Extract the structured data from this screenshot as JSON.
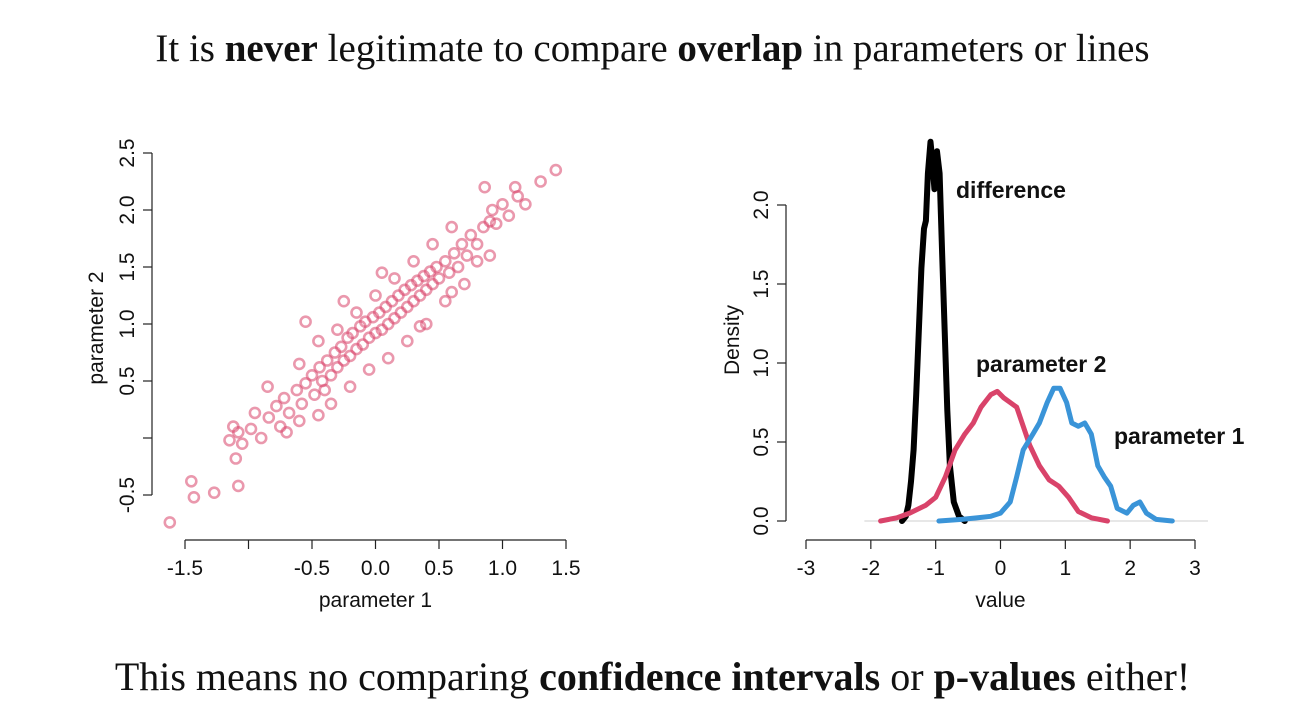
{
  "headline_top": {
    "p1": "It is ",
    "b1": "never",
    "p2": " legitimate to compare ",
    "b2": "overlap",
    "p3": " in parameters or lines"
  },
  "headline_bottom": {
    "p1": "This means no comparing ",
    "b1": "confidence intervals",
    "p2": " or ",
    "b2": "p-values",
    "p3": " either!"
  },
  "chart_data": [
    {
      "type": "scatter",
      "title": "",
      "xlabel": "parameter 1",
      "ylabel": "parameter 2",
      "xlim": [
        -1.5,
        1.5
      ],
      "ylim": [
        -0.5,
        2.5
      ],
      "x_ticks": [
        -1.5,
        -1.0,
        -0.5,
        0.0,
        0.5,
        1.0,
        1.5
      ],
      "x_tick_labels": [
        "-1.5",
        "",
        "-0.5",
        "0.0",
        "0.5",
        "1.0",
        "1.5"
      ],
      "y_ticks": [
        -0.5,
        0.0,
        0.5,
        1.0,
        1.5,
        2.0,
        2.5
      ],
      "y_tick_labels": [
        "-0.5",
        "",
        "0.5",
        "1.0",
        "1.5",
        "2.0",
        "2.5"
      ],
      "color": "#d9436a",
      "points": [
        [
          -1.62,
          -0.74
        ],
        [
          -1.43,
          -0.52
        ],
        [
          -1.45,
          -0.38
        ],
        [
          -1.27,
          -0.48
        ],
        [
          -1.08,
          -0.42
        ],
        [
          -1.1,
          -0.18
        ],
        [
          -1.15,
          -0.02
        ],
        [
          -1.08,
          0.05
        ],
        [
          -1.12,
          0.1
        ],
        [
          -1.05,
          -0.05
        ],
        [
          -0.98,
          0.08
        ],
        [
          -0.9,
          0.0
        ],
        [
          -0.95,
          0.22
        ],
        [
          -0.84,
          0.18
        ],
        [
          -0.78,
          0.28
        ],
        [
          -0.72,
          0.35
        ],
        [
          -0.68,
          0.22
        ],
        [
          -0.62,
          0.42
        ],
        [
          -0.58,
          0.3
        ],
        [
          -0.55,
          0.48
        ],
        [
          -0.5,
          0.55
        ],
        [
          -0.48,
          0.38
        ],
        [
          -0.44,
          0.62
        ],
        [
          -0.42,
          0.5
        ],
        [
          -0.38,
          0.68
        ],
        [
          -0.35,
          0.55
        ],
        [
          -0.32,
          0.75
        ],
        [
          -0.3,
          0.62
        ],
        [
          -0.27,
          0.8
        ],
        [
          -0.25,
          0.68
        ],
        [
          -0.22,
          0.88
        ],
        [
          -0.2,
          0.72
        ],
        [
          -0.18,
          0.92
        ],
        [
          -0.15,
          0.78
        ],
        [
          -0.12,
          0.98
        ],
        [
          -0.1,
          0.82
        ],
        [
          -0.08,
          1.02
        ],
        [
          -0.05,
          0.88
        ],
        [
          -0.02,
          1.06
        ],
        [
          0.0,
          0.92
        ],
        [
          0.03,
          1.1
        ],
        [
          0.05,
          0.95
        ],
        [
          0.08,
          1.15
        ],
        [
          0.1,
          1.0
        ],
        [
          0.13,
          1.2
        ],
        [
          0.15,
          1.05
        ],
        [
          0.18,
          1.25
        ],
        [
          0.2,
          1.1
        ],
        [
          0.23,
          1.3
        ],
        [
          0.25,
          1.15
        ],
        [
          0.28,
          1.34
        ],
        [
          0.3,
          1.2
        ],
        [
          0.33,
          1.38
        ],
        [
          0.35,
          1.25
        ],
        [
          0.38,
          1.42
        ],
        [
          0.4,
          1.3
        ],
        [
          0.43,
          1.46
        ],
        [
          0.45,
          1.35
        ],
        [
          0.48,
          1.5
        ],
        [
          0.5,
          1.4
        ],
        [
          0.55,
          1.55
        ],
        [
          0.58,
          1.45
        ],
        [
          0.62,
          1.62
        ],
        [
          0.65,
          1.5
        ],
        [
          0.68,
          1.7
        ],
        [
          0.72,
          1.6
        ],
        [
          0.75,
          1.78
        ],
        [
          0.8,
          1.7
        ],
        [
          0.85,
          1.85
        ],
        [
          0.9,
          1.9
        ],
        [
          0.92,
          2.0
        ],
        [
          0.95,
          1.88
        ],
        [
          1.0,
          2.05
        ],
        [
          1.05,
          1.95
        ],
        [
          1.12,
          2.12
        ],
        [
          1.18,
          2.05
        ],
        [
          1.3,
          2.25
        ],
        [
          1.42,
          2.35
        ],
        [
          0.86,
          2.2
        ],
        [
          1.1,
          2.2
        ],
        [
          -0.7,
          0.05
        ],
        [
          -0.6,
          0.15
        ],
        [
          -0.45,
          0.2
        ],
        [
          -0.35,
          0.3
        ],
        [
          -0.2,
          0.45
        ],
        [
          -0.05,
          0.6
        ],
        [
          0.1,
          0.7
        ],
        [
          0.25,
          0.85
        ],
        [
          0.4,
          1.0
        ],
        [
          0.55,
          1.2
        ],
        [
          -0.45,
          0.85
        ],
        [
          -0.3,
          0.95
        ],
        [
          -0.15,
          1.1
        ],
        [
          0.0,
          1.25
        ],
        [
          0.15,
          1.4
        ],
        [
          0.3,
          1.55
        ],
        [
          0.45,
          1.7
        ],
        [
          0.6,
          1.85
        ],
        [
          -0.6,
          0.65
        ],
        [
          0.7,
          1.35
        ],
        [
          -0.85,
          0.45
        ],
        [
          -0.25,
          1.2
        ],
        [
          0.05,
          1.45
        ],
        [
          -0.55,
          1.02
        ],
        [
          0.8,
          1.55
        ],
        [
          0.35,
          0.98
        ],
        [
          -0.75,
          0.1
        ],
        [
          0.6,
          1.28
        ],
        [
          0.9,
          1.6
        ],
        [
          -0.4,
          0.42
        ]
      ]
    },
    {
      "type": "line",
      "title": "",
      "xlabel": "value",
      "ylabel": "Density",
      "xlim": [
        -3,
        3
      ],
      "ylim": [
        0,
        2.5
      ],
      "x_ticks": [
        -3,
        -2,
        -1,
        0,
        1,
        2,
        3
      ],
      "x_tick_labels": [
        "-3",
        "-2",
        "-1",
        "0",
        "1",
        "2",
        "3"
      ],
      "y_ticks": [
        0.0,
        0.5,
        1.0,
        1.5,
        2.0
      ],
      "y_tick_labels": [
        "0.0",
        "0.5",
        "1.0",
        "1.5",
        "2.0"
      ],
      "series": [
        {
          "name": "difference",
          "color": "#000000",
          "points": [
            [
              -1.52,
              0.0
            ],
            [
              -1.46,
              0.03
            ],
            [
              -1.42,
              0.1
            ],
            [
              -1.38,
              0.25
            ],
            [
              -1.34,
              0.45
            ],
            [
              -1.3,
              0.8
            ],
            [
              -1.26,
              1.2
            ],
            [
              -1.22,
              1.6
            ],
            [
              -1.18,
              1.85
            ],
            [
              -1.15,
              1.9
            ],
            [
              -1.12,
              2.2
            ],
            [
              -1.08,
              2.4
            ],
            [
              -1.05,
              2.28
            ],
            [
              -1.02,
              2.1
            ],
            [
              -0.98,
              2.34
            ],
            [
              -0.94,
              2.2
            ],
            [
              -0.9,
              1.7
            ],
            [
              -0.86,
              1.2
            ],
            [
              -0.82,
              0.7
            ],
            [
              -0.78,
              0.35
            ],
            [
              -0.72,
              0.12
            ],
            [
              -0.64,
              0.03
            ],
            [
              -0.55,
              0.0
            ]
          ],
          "label": "difference"
        },
        {
          "name": "parameter 2",
          "color": "#d9436a",
          "points": [
            [
              -1.85,
              0.0
            ],
            [
              -1.6,
              0.02
            ],
            [
              -1.4,
              0.05
            ],
            [
              -1.15,
              0.1
            ],
            [
              -1.0,
              0.15
            ],
            [
              -0.85,
              0.28
            ],
            [
              -0.7,
              0.45
            ],
            [
              -0.55,
              0.55
            ],
            [
              -0.42,
              0.62
            ],
            [
              -0.3,
              0.72
            ],
            [
              -0.15,
              0.8
            ],
            [
              -0.05,
              0.82
            ],
            [
              0.05,
              0.78
            ],
            [
              0.15,
              0.75
            ],
            [
              0.25,
              0.72
            ],
            [
              0.35,
              0.6
            ],
            [
              0.45,
              0.48
            ],
            [
              0.6,
              0.35
            ],
            [
              0.75,
              0.26
            ],
            [
              0.9,
              0.22
            ],
            [
              1.05,
              0.15
            ],
            [
              1.2,
              0.06
            ],
            [
              1.4,
              0.02
            ],
            [
              1.65,
              0.0
            ]
          ],
          "label": "parameter 2"
        },
        {
          "name": "parameter 1",
          "color": "#3a94d8",
          "points": [
            [
              -0.95,
              0.0
            ],
            [
              -0.6,
              0.01
            ],
            [
              -0.35,
              0.02
            ],
            [
              -0.15,
              0.03
            ],
            [
              0.0,
              0.05
            ],
            [
              0.15,
              0.12
            ],
            [
              0.25,
              0.28
            ],
            [
              0.35,
              0.45
            ],
            [
              0.5,
              0.55
            ],
            [
              0.6,
              0.62
            ],
            [
              0.72,
              0.75
            ],
            [
              0.82,
              0.84
            ],
            [
              0.92,
              0.84
            ],
            [
              1.02,
              0.75
            ],
            [
              1.1,
              0.62
            ],
            [
              1.2,
              0.6
            ],
            [
              1.3,
              0.62
            ],
            [
              1.4,
              0.55
            ],
            [
              1.5,
              0.35
            ],
            [
              1.6,
              0.28
            ],
            [
              1.7,
              0.22
            ],
            [
              1.8,
              0.08
            ],
            [
              1.95,
              0.05
            ],
            [
              2.05,
              0.1
            ],
            [
              2.15,
              0.12
            ],
            [
              2.25,
              0.05
            ],
            [
              2.4,
              0.01
            ],
            [
              2.65,
              0.0
            ]
          ],
          "label": "parameter 1"
        }
      ]
    }
  ]
}
